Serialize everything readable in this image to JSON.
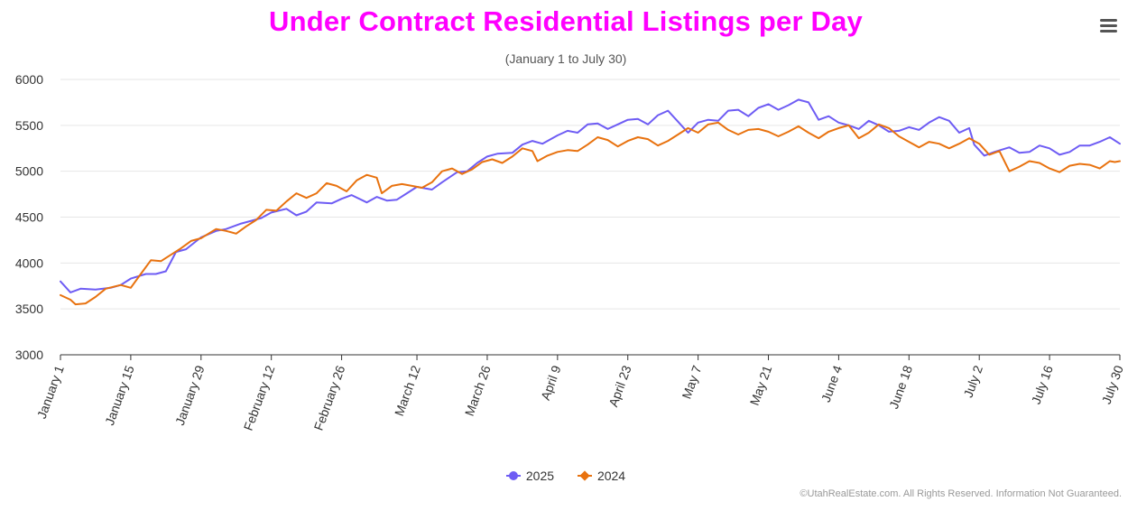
{
  "header": {
    "title": "Under Contract Residential Listings per Day",
    "subtitle": "(January 1 to July 30)"
  },
  "credits": "©UtahRealEstate.com. All Rights Reserved. Information Not Guaranteed.",
  "colors": {
    "title": "#ff00ff",
    "series_2025": "#6e5cf4",
    "series_2024": "#e8720f",
    "grid": "#e6e6e6",
    "axis": "#333333"
  },
  "chart_data": {
    "type": "line",
    "title": "Under Contract Residential Listings per Day",
    "subtitle": "(January 1 to July 30)",
    "ylim": [
      3000,
      6000
    ],
    "y_ticks": [
      "3000",
      "3500",
      "4000",
      "4500",
      "5000",
      "5500",
      "6000"
    ],
    "x_range": [
      "January 1",
      "July 30"
    ],
    "x_tick_labels": [
      "January 1",
      "January 15",
      "January 29",
      "February 12",
      "February 26",
      "March 12",
      "March 26",
      "April 9",
      "April 23",
      "May 7",
      "May 21",
      "June 4",
      "June 18",
      "July 2",
      "July 16",
      "July 30"
    ],
    "grid": true,
    "legend_position": "bottom",
    "series": [
      {
        "name": "2025",
        "marker": "circle",
        "points": [
          [
            "Jan 1",
            3800
          ],
          [
            "Jan 3",
            3680
          ],
          [
            "Jan 5",
            3720
          ],
          [
            "Jan 8",
            3710
          ],
          [
            "Jan 11",
            3730
          ],
          [
            "Jan 13",
            3760
          ],
          [
            "Jan 15",
            3830
          ],
          [
            "Jan 18",
            3880
          ],
          [
            "Jan 20",
            3880
          ],
          [
            "Jan 22",
            3910
          ],
          [
            "Jan 24",
            4120
          ],
          [
            "Jan 26",
            4150
          ],
          [
            "Jan 29",
            4280
          ],
          [
            "Feb 1",
            4350
          ],
          [
            "Feb 3",
            4370
          ],
          [
            "Feb 6",
            4430
          ],
          [
            "Feb 8",
            4460
          ],
          [
            "Feb 10",
            4490
          ],
          [
            "Feb 12",
            4550
          ],
          [
            "Feb 15",
            4590
          ],
          [
            "Feb 17",
            4520
          ],
          [
            "Feb 19",
            4560
          ],
          [
            "Feb 21",
            4660
          ],
          [
            "Feb 24",
            4650
          ],
          [
            "Feb 26",
            4700
          ],
          [
            "Feb 28",
            4740
          ],
          [
            "Mar 2",
            4660
          ],
          [
            "Mar 4",
            4720
          ],
          [
            "Mar 6",
            4680
          ],
          [
            "Mar 8",
            4690
          ],
          [
            "Mar 10",
            4760
          ],
          [
            "Mar 12",
            4830
          ],
          [
            "Mar 15",
            4800
          ],
          [
            "Mar 17",
            4880
          ],
          [
            "Mar 20",
            4990
          ],
          [
            "Mar 22",
            5000
          ],
          [
            "Mar 24",
            5090
          ],
          [
            "Mar 26",
            5160
          ],
          [
            "Mar 28",
            5190
          ],
          [
            "Mar 31",
            5200
          ],
          [
            "Apr 2",
            5290
          ],
          [
            "Apr 4",
            5330
          ],
          [
            "Apr 6",
            5300
          ],
          [
            "Apr 9",
            5390
          ],
          [
            "Apr 11",
            5440
          ],
          [
            "Apr 13",
            5420
          ],
          [
            "Apr 15",
            5510
          ],
          [
            "Apr 17",
            5520
          ],
          [
            "Apr 19",
            5460
          ],
          [
            "Apr 21",
            5510
          ],
          [
            "Apr 23",
            5560
          ],
          [
            "Apr 25",
            5570
          ],
          [
            "Apr 27",
            5510
          ],
          [
            "Apr 29",
            5610
          ],
          [
            "May 1",
            5660
          ],
          [
            "May 3",
            5540
          ],
          [
            "May 5",
            5420
          ],
          [
            "May 7",
            5530
          ],
          [
            "May 9",
            5560
          ],
          [
            "May 11",
            5550
          ],
          [
            "May 13",
            5660
          ],
          [
            "May 15",
            5670
          ],
          [
            "May 17",
            5600
          ],
          [
            "May 19",
            5690
          ],
          [
            "May 21",
            5730
          ],
          [
            "May 23",
            5670
          ],
          [
            "May 25",
            5720
          ],
          [
            "May 27",
            5780
          ],
          [
            "May 29",
            5750
          ],
          [
            "May 31",
            5560
          ],
          [
            "Jun 2",
            5600
          ],
          [
            "Jun 4",
            5530
          ],
          [
            "Jun 6",
            5500
          ],
          [
            "Jun 8",
            5460
          ],
          [
            "Jun 10",
            5550
          ],
          [
            "Jun 12",
            5500
          ],
          [
            "Jun 14",
            5430
          ],
          [
            "Jun 16",
            5440
          ],
          [
            "Jun 18",
            5480
          ],
          [
            "Jun 20",
            5450
          ],
          [
            "Jun 22",
            5530
          ],
          [
            "Jun 24",
            5590
          ],
          [
            "Jun 26",
            5550
          ],
          [
            "Jun 28",
            5420
          ],
          [
            "Jun 30",
            5470
          ],
          [
            "Jul 1",
            5290
          ],
          [
            "Jul 2",
            5230
          ],
          [
            "Jul 3",
            5170
          ],
          [
            "Jul 5",
            5210
          ],
          [
            "Jul 8",
            5260
          ],
          [
            "Jul 10",
            5200
          ],
          [
            "Jul 12",
            5210
          ],
          [
            "Jul 14",
            5280
          ],
          [
            "Jul 16",
            5250
          ],
          [
            "Jul 18",
            5180
          ],
          [
            "Jul 20",
            5210
          ],
          [
            "Jul 22",
            5280
          ],
          [
            "Jul 24",
            5280
          ],
          [
            "Jul 26",
            5320
          ],
          [
            "Jul 28",
            5370
          ],
          [
            "Jul 30",
            5300
          ]
        ]
      },
      {
        "name": "2024",
        "marker": "diamond",
        "points": [
          [
            "Jan 1",
            3650
          ],
          [
            "Jan 3",
            3600
          ],
          [
            "Jan 4",
            3550
          ],
          [
            "Jan 6",
            3560
          ],
          [
            "Jan 8",
            3630
          ],
          [
            "Jan 10",
            3720
          ],
          [
            "Jan 13",
            3760
          ],
          [
            "Jan 15",
            3730
          ],
          [
            "Jan 17",
            3880
          ],
          [
            "Jan 19",
            4030
          ],
          [
            "Jan 21",
            4020
          ],
          [
            "Jan 23",
            4090
          ],
          [
            "Jan 25",
            4160
          ],
          [
            "Jan 27",
            4240
          ],
          [
            "Jan 29",
            4270
          ],
          [
            "Feb 1",
            4370
          ],
          [
            "Feb 3",
            4350
          ],
          [
            "Feb 5",
            4320
          ],
          [
            "Feb 7",
            4400
          ],
          [
            "Feb 9",
            4470
          ],
          [
            "Feb 11",
            4580
          ],
          [
            "Feb 13",
            4570
          ],
          [
            "Feb 15",
            4670
          ],
          [
            "Feb 17",
            4760
          ],
          [
            "Feb 19",
            4710
          ],
          [
            "Feb 21",
            4760
          ],
          [
            "Feb 23",
            4870
          ],
          [
            "Feb 25",
            4840
          ],
          [
            "Feb 27",
            4780
          ],
          [
            "Feb 29",
            4900
          ],
          [
            "Mar 2",
            4960
          ],
          [
            "Mar 4",
            4930
          ],
          [
            "Mar 5",
            4760
          ],
          [
            "Mar 7",
            4840
          ],
          [
            "Mar 9",
            4860
          ],
          [
            "Mar 11",
            4840
          ],
          [
            "Mar 13",
            4820
          ],
          [
            "Mar 15",
            4880
          ],
          [
            "Mar 17",
            5000
          ],
          [
            "Mar 19",
            5030
          ],
          [
            "Mar 21",
            4970
          ],
          [
            "Mar 23",
            5020
          ],
          [
            "Mar 25",
            5100
          ],
          [
            "Mar 27",
            5130
          ],
          [
            "Mar 29",
            5090
          ],
          [
            "Mar 31",
            5160
          ],
          [
            "Apr 2",
            5250
          ],
          [
            "Apr 4",
            5220
          ],
          [
            "Apr 5",
            5110
          ],
          [
            "Apr 7",
            5170
          ],
          [
            "Apr 9",
            5210
          ],
          [
            "Apr 11",
            5230
          ],
          [
            "Apr 13",
            5220
          ],
          [
            "Apr 15",
            5290
          ],
          [
            "Apr 17",
            5370
          ],
          [
            "Apr 19",
            5340
          ],
          [
            "Apr 21",
            5270
          ],
          [
            "Apr 23",
            5330
          ],
          [
            "Apr 25",
            5370
          ],
          [
            "Apr 27",
            5350
          ],
          [
            "Apr 29",
            5280
          ],
          [
            "May 1",
            5330
          ],
          [
            "May 3",
            5400
          ],
          [
            "May 5",
            5470
          ],
          [
            "May 7",
            5420
          ],
          [
            "May 9",
            5510
          ],
          [
            "May 11",
            5530
          ],
          [
            "May 13",
            5450
          ],
          [
            "May 15",
            5400
          ],
          [
            "May 17",
            5450
          ],
          [
            "May 19",
            5460
          ],
          [
            "May 21",
            5430
          ],
          [
            "May 23",
            5380
          ],
          [
            "May 25",
            5430
          ],
          [
            "May 27",
            5490
          ],
          [
            "May 29",
            5420
          ],
          [
            "May 31",
            5360
          ],
          [
            "Jun 2",
            5430
          ],
          [
            "Jun 4",
            5470
          ],
          [
            "Jun 6",
            5500
          ],
          [
            "Jun 8",
            5360
          ],
          [
            "Jun 10",
            5420
          ],
          [
            "Jun 12",
            5510
          ],
          [
            "Jun 14",
            5470
          ],
          [
            "Jun 16",
            5380
          ],
          [
            "Jun 18",
            5320
          ],
          [
            "Jun 20",
            5260
          ],
          [
            "Jun 22",
            5320
          ],
          [
            "Jun 24",
            5300
          ],
          [
            "Jun 26",
            5250
          ],
          [
            "Jun 28",
            5300
          ],
          [
            "Jun 30",
            5360
          ],
          [
            "Jul 2",
            5300
          ],
          [
            "Jul 4",
            5180
          ],
          [
            "Jul 6",
            5220
          ],
          [
            "Jul 8",
            5000
          ],
          [
            "Jul 10",
            5050
          ],
          [
            "Jul 12",
            5110
          ],
          [
            "Jul 14",
            5090
          ],
          [
            "Jul 16",
            5030
          ],
          [
            "Jul 18",
            4990
          ],
          [
            "Jul 20",
            5060
          ],
          [
            "Jul 22",
            5080
          ],
          [
            "Jul 24",
            5070
          ],
          [
            "Jul 26",
            5030
          ],
          [
            "Jul 27",
            5070
          ],
          [
            "Jul 28",
            5110
          ],
          [
            "Jul 29",
            5100
          ],
          [
            "Jul 30",
            5110
          ]
        ]
      }
    ]
  },
  "legend": {
    "items": [
      "2025",
      "2024"
    ]
  },
  "menu": {
    "icon": "hamburger-menu-icon"
  }
}
